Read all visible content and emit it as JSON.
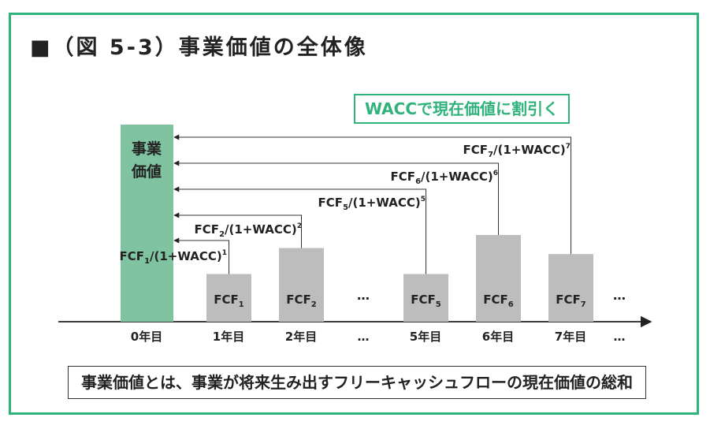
{
  "title": "■（図 5-3）事業価値の全体像",
  "discount_label": "WACCで現在価値に割引く",
  "caption": "事業価値とは、事業が将来生み出すフリーキャッシュフローの現在価値の総和",
  "business_value_label_line1": "事業",
  "business_value_label_line2": "価値",
  "colors": {
    "accent": "#2fb37b",
    "business_value_bar": "#7fc3a0",
    "fcf_bar": "#bdbdbd"
  },
  "ellipsis": "…",
  "year_labels": [
    "0年目",
    "1年目",
    "2年目",
    "…",
    "5年目",
    "6年目",
    "7年目",
    "…"
  ],
  "fcf_bars": [
    {
      "base": "FCF",
      "sub": "1",
      "relative_height": 0.55
    },
    {
      "base": "FCF",
      "sub": "2",
      "relative_height": 0.85
    },
    {
      "base": "FCF",
      "sub": "5",
      "relative_height": 0.55
    },
    {
      "base": "FCF",
      "sub": "6",
      "relative_height": 1.0
    },
    {
      "base": "FCF",
      "sub": "7",
      "relative_height": 0.78
    }
  ],
  "discount_formulas": [
    {
      "base": "FCF",
      "sub": "1",
      "mid": "/(1+WACC)",
      "sup": "1"
    },
    {
      "base": "FCF",
      "sub": "2",
      "mid": "/(1+WACC)",
      "sup": "2"
    },
    {
      "base": "FCF",
      "sub": "5",
      "mid": "/(1+WACC)",
      "sup": "5"
    },
    {
      "base": "FCF",
      "sub": "6",
      "mid": "/(1+WACC)",
      "sup": "6"
    },
    {
      "base": "FCF",
      "sub": "7",
      "mid": "/(1+WACC)",
      "sup": "7"
    }
  ]
}
